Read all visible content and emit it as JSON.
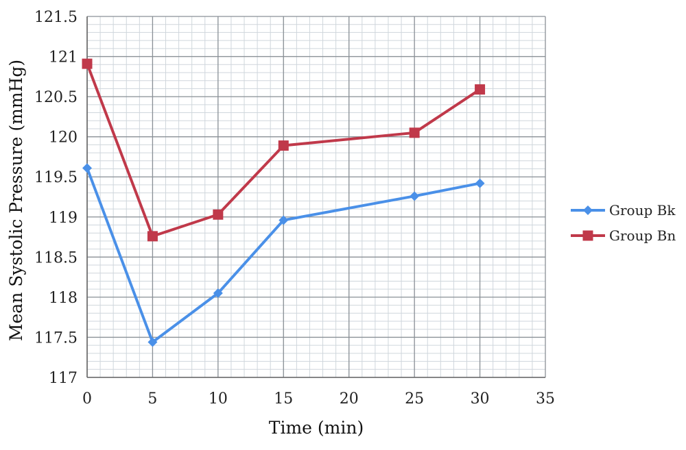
{
  "chart_data": {
    "type": "line",
    "title": "",
    "xlabel": "Time (min)",
    "ylabel": "Mean Systolic Pressure (mmHg)",
    "xlim": [
      0,
      35
    ],
    "ylim": [
      117,
      121.5
    ],
    "xticks": [
      0,
      5,
      10,
      15,
      20,
      25,
      30,
      35
    ],
    "yticks": [
      117,
      117.5,
      118,
      118.5,
      119,
      119.5,
      120,
      120.5,
      121,
      121.5
    ],
    "x_tick_labels": [
      "0",
      "5",
      "10",
      "15",
      "20",
      "25",
      "30",
      "35"
    ],
    "y_tick_labels": [
      "117",
      "117.5",
      "118",
      "118.5",
      "119",
      "119.5",
      "120",
      "120.5",
      "121",
      "121.5"
    ],
    "grid": true,
    "legend_position": "right",
    "series": [
      {
        "name": "Group Bk",
        "color": "#4a90e8",
        "marker": "diamond",
        "x": [
          0,
          5,
          10,
          15,
          25,
          30
        ],
        "y": [
          119.61,
          117.44,
          118.05,
          118.96,
          119.26,
          119.42
        ]
      },
      {
        "name": "Group Bn",
        "color": "#c0394a",
        "marker": "square",
        "x": [
          0,
          5,
          10,
          15,
          25,
          30
        ],
        "y": [
          120.91,
          118.76,
          119.03,
          119.89,
          120.05,
          120.59
        ]
      }
    ]
  }
}
